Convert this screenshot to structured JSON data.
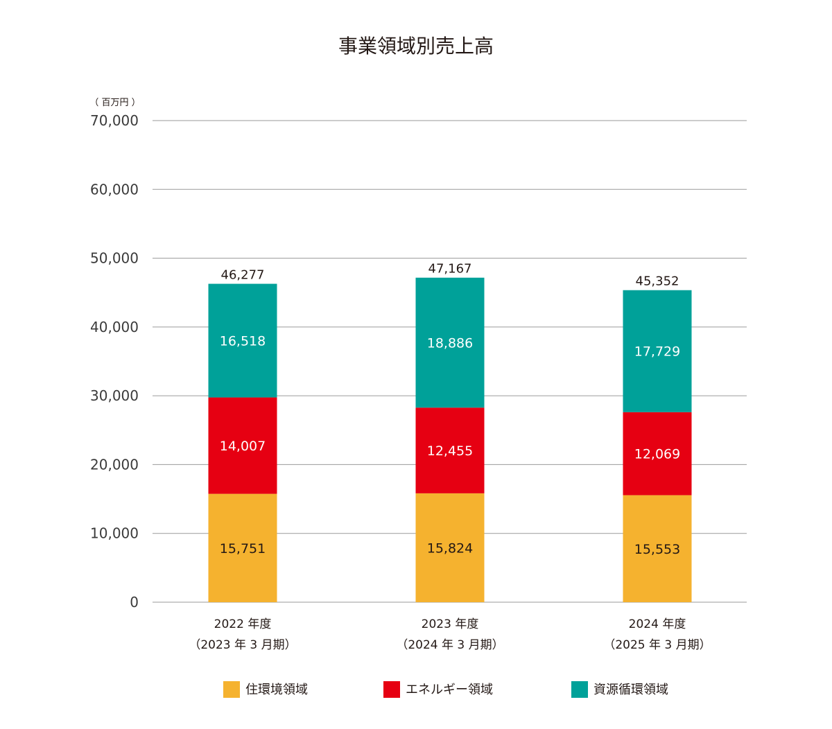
{
  "chart_data": {
    "type": "bar",
    "stacked": true,
    "title": "事業領域別売上高",
    "unit_label": "（ 百万円 ）",
    "ylim": [
      0,
      70000
    ],
    "yticks": [
      0,
      10000,
      20000,
      30000,
      40000,
      50000,
      60000,
      70000
    ],
    "ytick_labels": [
      "0",
      "10,000",
      "20,000",
      "30,000",
      "40,000",
      "50,000",
      "60,000",
      "70,000"
    ],
    "grid": true,
    "legend_position": "bottom",
    "categories": [
      {
        "line1": "2022 年度",
        "line2": "（2023 年 3 月期）"
      },
      {
        "line1": "2023 年度",
        "line2": "（2024 年 3 月期）"
      },
      {
        "line1": "2024 年度",
        "line2": "（2025 年 3 月期）"
      }
    ],
    "totals": [
      46277,
      47167,
      45352
    ],
    "total_labels": [
      "46,277",
      "47,167",
      "45,352"
    ],
    "series": [
      {
        "name": "住環境領域",
        "color": "#F5B22F",
        "label_color": "#231815",
        "values": [
          15751,
          15824,
          15553
        ],
        "labels": [
          "15,751",
          "15,824",
          "15,553"
        ]
      },
      {
        "name": "エネルギー領域",
        "color": "#E60012",
        "label_color": "#ffffff",
        "values": [
          14007,
          12455,
          12069
        ],
        "labels": [
          "14,007",
          "12,455",
          "12,069"
        ]
      },
      {
        "name": "資源循環領域",
        "color": "#00A199",
        "label_color": "#ffffff",
        "values": [
          16518,
          18886,
          17729
        ],
        "labels": [
          "16,518",
          "18,886",
          "17,729"
        ]
      }
    ]
  }
}
